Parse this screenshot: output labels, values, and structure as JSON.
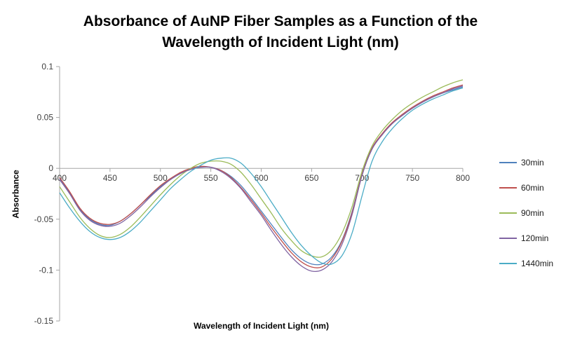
{
  "title_lines": [
    "Absorbance of AuNP Fiber Samples as a Function of the",
    "Wavelength of Incident Light (nm)"
  ],
  "chart_data": {
    "type": "line",
    "title": "Absorbance of AuNP Fiber Samples as a Function of the Wavelength of Incident Light (nm)",
    "xlabel": "Wavelength of Incident Light (nm)",
    "ylabel": "Absorbance",
    "xlim": [
      400,
      800
    ],
    "ylim": [
      -0.15,
      0.1
    ],
    "xticks": [
      400,
      450,
      500,
      550,
      600,
      650,
      700,
      750,
      800
    ],
    "yticks": [
      0.1,
      0.05,
      0,
      -0.05,
      -0.1,
      -0.15
    ],
    "ytick_labels": [
      "0.1",
      "0.05",
      "0",
      "-0.05",
      "-0.1",
      "-0.15"
    ],
    "grid": false,
    "legend_position": "right",
    "axis_color": "#A6A6A6",
    "tick_label_color": "#404040",
    "x": [
      400,
      410,
      420,
      430,
      440,
      450,
      460,
      470,
      480,
      490,
      500,
      510,
      520,
      530,
      540,
      550,
      560,
      570,
      580,
      590,
      600,
      610,
      620,
      630,
      640,
      650,
      660,
      670,
      680,
      690,
      700,
      710,
      720,
      730,
      740,
      750,
      760,
      770,
      780,
      790,
      800
    ],
    "series": [
      {
        "name": "30min",
        "color": "#4F81BD",
        "values": [
          -0.01,
          -0.024,
          -0.04,
          -0.05,
          -0.055,
          -0.056,
          -0.052,
          -0.045,
          -0.036,
          -0.027,
          -0.018,
          -0.011,
          -0.005,
          -0.001,
          0.001,
          0.001,
          -0.002,
          -0.008,
          -0.017,
          -0.029,
          -0.042,
          -0.055,
          -0.068,
          -0.08,
          -0.089,
          -0.094,
          -0.094,
          -0.087,
          -0.071,
          -0.043,
          -0.006,
          0.019,
          0.033,
          0.044,
          0.052,
          0.059,
          0.065,
          0.07,
          0.074,
          0.077,
          0.08
        ]
      },
      {
        "name": "60min",
        "color": "#C0504D",
        "values": [
          -0.009,
          -0.023,
          -0.039,
          -0.049,
          -0.054,
          -0.055,
          -0.052,
          -0.045,
          -0.036,
          -0.026,
          -0.017,
          -0.01,
          -0.004,
          0.0,
          0.002,
          0.001,
          -0.002,
          -0.009,
          -0.019,
          -0.031,
          -0.044,
          -0.058,
          -0.071,
          -0.083,
          -0.092,
          -0.097,
          -0.097,
          -0.089,
          -0.072,
          -0.044,
          -0.006,
          0.02,
          0.034,
          0.045,
          0.053,
          0.06,
          0.066,
          0.071,
          0.075,
          0.079,
          0.082
        ]
      },
      {
        "name": "90min",
        "color": "#9BBB59",
        "values": [
          -0.018,
          -0.033,
          -0.048,
          -0.059,
          -0.066,
          -0.068,
          -0.065,
          -0.058,
          -0.048,
          -0.037,
          -0.026,
          -0.016,
          -0.007,
          0.0,
          0.005,
          0.007,
          0.007,
          0.004,
          -0.004,
          -0.016,
          -0.03,
          -0.044,
          -0.059,
          -0.071,
          -0.081,
          -0.086,
          -0.087,
          -0.08,
          -0.064,
          -0.038,
          -0.003,
          0.022,
          0.037,
          0.048,
          0.057,
          0.064,
          0.07,
          0.075,
          0.08,
          0.084,
          0.087
        ]
      },
      {
        "name": "120min",
        "color": "#8064A2",
        "values": [
          -0.011,
          -0.025,
          -0.041,
          -0.051,
          -0.056,
          -0.057,
          -0.054,
          -0.047,
          -0.038,
          -0.028,
          -0.019,
          -0.011,
          -0.005,
          -0.001,
          0.001,
          0.001,
          -0.003,
          -0.01,
          -0.02,
          -0.033,
          -0.046,
          -0.061,
          -0.075,
          -0.087,
          -0.096,
          -0.101,
          -0.1,
          -0.092,
          -0.075,
          -0.046,
          -0.007,
          0.019,
          0.033,
          0.044,
          0.052,
          0.059,
          0.065,
          0.07,
          0.074,
          0.078,
          0.081
        ]
      },
      {
        "name": "1440min",
        "color": "#4BACC6",
        "values": [
          -0.024,
          -0.039,
          -0.052,
          -0.062,
          -0.068,
          -0.07,
          -0.068,
          -0.062,
          -0.053,
          -0.042,
          -0.031,
          -0.02,
          -0.011,
          -0.003,
          0.003,
          0.008,
          0.01,
          0.01,
          0.005,
          -0.005,
          -0.018,
          -0.033,
          -0.048,
          -0.063,
          -0.076,
          -0.086,
          -0.093,
          -0.094,
          -0.086,
          -0.064,
          -0.027,
          0.007,
          0.026,
          0.039,
          0.049,
          0.057,
          0.063,
          0.068,
          0.072,
          0.076,
          0.079
        ]
      }
    ]
  }
}
